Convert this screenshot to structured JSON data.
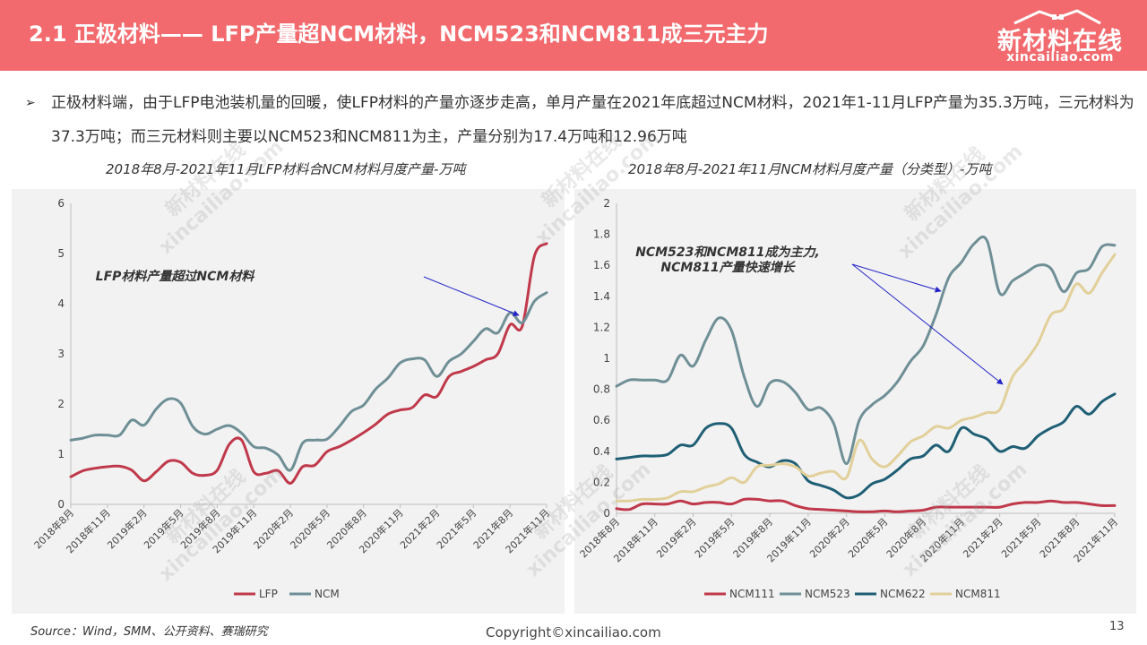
{
  "header": {
    "title": "2.1 正极材料—— LFP产量超NCM材料，NCM523和NCM811成三元主力",
    "logo_cn": "新材料在线",
    "logo_en": "xincailiao.com"
  },
  "bullet": {
    "icon": "arrow-bullet-icon",
    "text": "正极材料端，由于LFP电池装机量的回暖，使LFP材料的产量亦逐步走高，单月产量在2021年底超过NCM材料，2021年1-11月LFP产量为35.3万吨，三元材料为37.3万吨；而三元材料则主要以NCM523和NCM811为主，产量分别为17.4万吨和12.96万吨"
  },
  "watermark": {
    "cn": "新材料在线",
    "en": "xincailiao.com"
  },
  "colors": {
    "header": "#f26a6d",
    "panel": "#f2f2f2",
    "red": "#c0394b",
    "gray": "#6f8f96",
    "teal": "#1f5f75",
    "tan": "#e2d09a",
    "arrow": "#2424c8"
  },
  "footer": {
    "source": "Source：Wind，SMM、公开资料、赛瑞研究",
    "copyright": "Copyright©xincailiao.com",
    "page": "13"
  },
  "chart_data": [
    {
      "type": "line",
      "title": "2018年8月-2021年11月LFP材料合NCM材料月度产量-万吨",
      "xlabel": "",
      "ylabel": "",
      "ylim": [
        0,
        6
      ],
      "yticks": [
        "0",
        "1",
        "2",
        "3",
        "4",
        "5",
        "6"
      ],
      "xticks": [
        "2018年8月",
        "2018年11月",
        "2019年2月",
        "2019年5月",
        "2019年8月",
        "2019年11月",
        "2020年2月",
        "2020年5月",
        "2020年8月",
        "2020年11月",
        "2021年2月",
        "2021年5月",
        "2021年8月",
        "2021年11月"
      ],
      "grid": false,
      "legend": "bottom",
      "annotation": "LFP材料产量超过NCM材料",
      "series": [
        {
          "name": "LFP",
          "color": "#c0394b",
          "values": [
            0.55,
            0.67,
            0.72,
            0.75,
            0.76,
            0.68,
            0.47,
            0.65,
            0.86,
            0.84,
            0.62,
            0.58,
            0.68,
            1.2,
            1.28,
            0.65,
            0.62,
            0.67,
            0.42,
            0.75,
            0.78,
            1.05,
            1.15,
            1.28,
            1.43,
            1.6,
            1.8,
            1.88,
            1.93,
            2.18,
            2.15,
            2.55,
            2.65,
            2.75,
            2.88,
            3.0,
            3.58,
            3.55,
            4.95,
            5.2
          ]
        },
        {
          "name": "NCM",
          "color": "#6f8f96",
          "values": [
            1.28,
            1.32,
            1.38,
            1.38,
            1.38,
            1.68,
            1.58,
            1.9,
            2.1,
            2.02,
            1.55,
            1.4,
            1.5,
            1.57,
            1.42,
            1.15,
            1.12,
            0.98,
            0.68,
            1.22,
            1.28,
            1.3,
            1.55,
            1.85,
            1.98,
            2.3,
            2.52,
            2.82,
            2.9,
            2.88,
            2.55,
            2.85,
            3.0,
            3.25,
            3.5,
            3.42,
            3.82,
            3.62,
            4.05,
            4.22
          ]
        }
      ]
    },
    {
      "type": "line",
      "title": "2018年8月-2021年11月NCM材料月度产量（分类型）-万吨",
      "xlabel": "",
      "ylabel": "",
      "ylim": [
        0,
        2
      ],
      "yticks": [
        "0",
        "0.2",
        "0.4",
        "0.6",
        "0.8",
        "1",
        "1.2",
        "1.4",
        "1.6",
        "1.8",
        "2"
      ],
      "xticks": [
        "2018年8月",
        "2018年11月",
        "2019年2月",
        "2019年5月",
        "2019年8月",
        "2019年11月",
        "2020年2月",
        "2020年5月",
        "2020年8月",
        "2020年11月",
        "2021年2月",
        "2021年5月",
        "2021年8月",
        "2021年11月"
      ],
      "grid": false,
      "legend": "bottom",
      "annotation": "NCM523和NCM811成为主力,\nNCM811产量快速增长",
      "series": [
        {
          "name": "NCM111",
          "color": "#c0394b",
          "values": [
            0.03,
            0.025,
            0.06,
            0.06,
            0.06,
            0.08,
            0.06,
            0.07,
            0.07,
            0.06,
            0.09,
            0.09,
            0.08,
            0.08,
            0.05,
            0.03,
            0.025,
            0.02,
            0.015,
            0.01,
            0.01,
            0.015,
            0.01,
            0.015,
            0.02,
            0.04,
            0.04,
            0.04,
            0.04,
            0.04,
            0.04,
            0.06,
            0.07,
            0.07,
            0.08,
            0.07,
            0.07,
            0.06,
            0.05,
            0.05
          ]
        },
        {
          "name": "NCM523",
          "color": "#6f8f96",
          "values": [
            0.82,
            0.86,
            0.86,
            0.86,
            0.86,
            1.02,
            0.95,
            1.12,
            1.26,
            1.18,
            0.88,
            0.69,
            0.84,
            0.85,
            0.78,
            0.67,
            0.68,
            0.58,
            0.32,
            0.6,
            0.7,
            0.76,
            0.85,
            0.98,
            1.08,
            1.28,
            1.52,
            1.62,
            1.74,
            1.76,
            1.42,
            1.5,
            1.55,
            1.6,
            1.58,
            1.43,
            1.55,
            1.58,
            1.72,
            1.73
          ]
        },
        {
          "name": "NCM622",
          "color": "#1f5f75",
          "values": [
            0.35,
            0.36,
            0.37,
            0.37,
            0.38,
            0.44,
            0.44,
            0.55,
            0.58,
            0.55,
            0.38,
            0.33,
            0.3,
            0.34,
            0.32,
            0.21,
            0.18,
            0.15,
            0.1,
            0.12,
            0.19,
            0.22,
            0.28,
            0.35,
            0.37,
            0.44,
            0.4,
            0.55,
            0.51,
            0.48,
            0.4,
            0.43,
            0.42,
            0.5,
            0.55,
            0.59,
            0.69,
            0.64,
            0.72,
            0.77
          ]
        },
        {
          "name": "NCM811",
          "color": "#e2d09a",
          "values": [
            0.08,
            0.08,
            0.09,
            0.09,
            0.1,
            0.14,
            0.14,
            0.17,
            0.19,
            0.23,
            0.2,
            0.3,
            0.31,
            0.32,
            0.3,
            0.24,
            0.26,
            0.27,
            0.23,
            0.47,
            0.35,
            0.3,
            0.37,
            0.46,
            0.5,
            0.56,
            0.55,
            0.6,
            0.62,
            0.65,
            0.67,
            0.88,
            0.98,
            1.1,
            1.28,
            1.32,
            1.48,
            1.42,
            1.55,
            1.67
          ]
        }
      ]
    }
  ]
}
